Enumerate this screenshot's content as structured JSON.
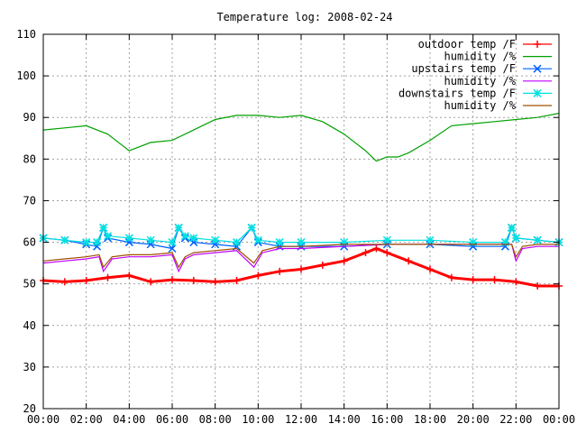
{
  "chart_data": {
    "type": "line",
    "title": "Temperature log: 2008-02-24",
    "xlabel": "",
    "ylabel": "",
    "xlim": [
      0,
      24
    ],
    "ylim": [
      20,
      110
    ],
    "x_ticks": [
      "00:00",
      "02:00",
      "04:00",
      "06:00",
      "08:00",
      "10:00",
      "12:00",
      "14:00",
      "16:00",
      "18:00",
      "20:00",
      "22:00",
      "00:00"
    ],
    "y_ticks": [
      20,
      30,
      40,
      50,
      60,
      70,
      80,
      90,
      100,
      110
    ],
    "grid": true,
    "legend_position": "top-right",
    "series": [
      {
        "name": "outdoor temp /F",
        "color": "#ff0000",
        "marker": "plus",
        "x": [
          0,
          1,
          2,
          3,
          4,
          5,
          6,
          7,
          8,
          9,
          10,
          11,
          12,
          13,
          14,
          15,
          15.5,
          16,
          17,
          18,
          19,
          20,
          21,
          22,
          23,
          24
        ],
        "y": [
          50.8,
          50.5,
          50.8,
          51.5,
          52.0,
          50.5,
          51.0,
          50.8,
          50.5,
          50.8,
          52.0,
          53.0,
          53.5,
          54.5,
          55.5,
          57.5,
          58.5,
          57.5,
          55.5,
          53.5,
          51.5,
          51.0,
          51.0,
          50.5,
          49.5,
          49.5
        ]
      },
      {
        "name": "humidity /%",
        "color": "#00a000",
        "marker": "none",
        "x": [
          0,
          1,
          2,
          3,
          4,
          5,
          6,
          7,
          8,
          9,
          10,
          11,
          12,
          13,
          14,
          15,
          15.5,
          16,
          16.5,
          17,
          18,
          19,
          20,
          21,
          22,
          23,
          24
        ],
        "y": [
          87,
          87.5,
          88,
          86,
          82,
          84,
          84.5,
          87,
          89.5,
          90.5,
          90.5,
          90,
          90.5,
          89,
          86,
          82,
          79.5,
          80.5,
          80.5,
          81.5,
          84.5,
          88,
          88.5,
          89,
          89.5,
          90,
          91
        ]
      },
      {
        "name": "upstairs temp /F",
        "color": "#0060ff",
        "marker": "cross",
        "x": [
          0,
          1,
          2,
          2.5,
          2.8,
          3,
          4,
          5,
          6,
          6.3,
          6.6,
          7,
          8,
          9,
          9.7,
          10,
          11,
          12,
          14,
          16,
          18,
          20,
          21.5,
          21.8,
          22,
          23,
          24
        ],
        "y": [
          61,
          60.5,
          59.5,
          59,
          63.5,
          61,
          60,
          59.5,
          58.5,
          63.5,
          61,
          60,
          59.5,
          59,
          63.5,
          60,
          59,
          59,
          59,
          59.5,
          59.5,
          59,
          59,
          63.5,
          61,
          60.5,
          60
        ]
      },
      {
        "name": "humidity /%",
        "color": "#c000ff",
        "marker": "none",
        "x": [
          0,
          1,
          2,
          2.6,
          2.8,
          3.2,
          4,
          5,
          6,
          6.3,
          6.6,
          7,
          8,
          9,
          9.8,
          10.2,
          11,
          12,
          14,
          16,
          18,
          20,
          21.8,
          22,
          22.3,
          23,
          24
        ],
        "y": [
          55,
          55.5,
          56,
          56.5,
          53,
          56,
          56.5,
          56.5,
          57,
          53,
          56,
          57,
          57.5,
          58,
          54,
          57.5,
          58.5,
          58.5,
          59,
          59.5,
          59.5,
          59.5,
          59.5,
          55.5,
          58.5,
          59,
          59
        ]
      },
      {
        "name": "downstairs temp /F",
        "color": "#00e0e0",
        "marker": "star",
        "x": [
          0,
          1,
          2,
          2.5,
          2.8,
          3,
          4,
          5,
          6,
          6.3,
          6.6,
          7,
          8,
          9,
          9.7,
          10,
          11,
          12,
          14,
          16,
          18,
          20,
          21.5,
          21.8,
          22,
          23,
          24
        ],
        "y": [
          61,
          60.5,
          60,
          60,
          63.5,
          61.5,
          61,
          60.5,
          60,
          63.5,
          61.5,
          61,
          60.5,
          60,
          63.5,
          60.5,
          60,
          60,
          60,
          60.5,
          60.5,
          60,
          60,
          63.5,
          61,
          60.5,
          60
        ]
      },
      {
        "name": "humidity /%",
        "color": "#a05000",
        "marker": "none",
        "x": [
          0,
          1,
          2,
          2.6,
          2.8,
          3.2,
          4,
          5,
          6,
          6.3,
          6.6,
          7,
          8,
          9,
          9.8,
          10.2,
          11,
          12,
          14,
          16,
          18,
          20,
          21.8,
          22,
          22.3,
          23,
          24
        ],
        "y": [
          55.5,
          56,
          56.5,
          57,
          54,
          56.5,
          57,
          57,
          57.5,
          54,
          56.5,
          57.5,
          58,
          58.5,
          55,
          58,
          59,
          59,
          59.5,
          59.5,
          59.5,
          59.5,
          59.5,
          56.5,
          59,
          59.5,
          59.5
        ]
      }
    ]
  }
}
